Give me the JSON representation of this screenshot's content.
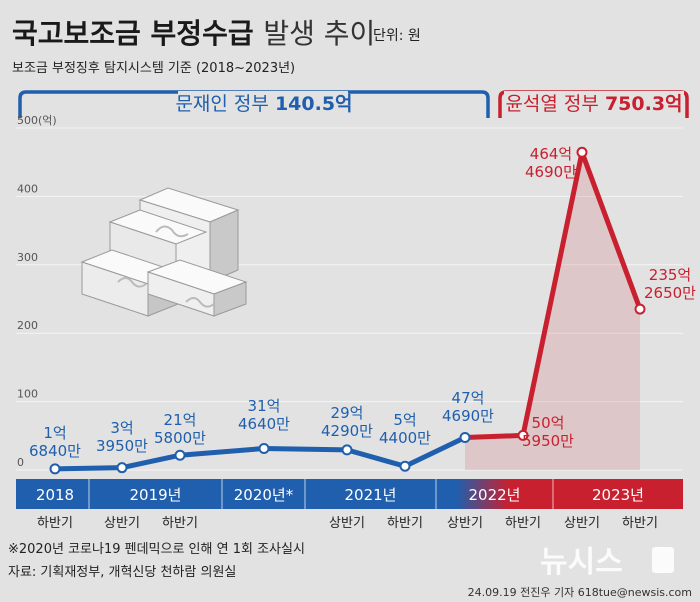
{
  "header": {
    "title_bold": "국고보조금 부정수급",
    "title_light": "발생 추이",
    "unit": "단위: 원",
    "subtitle": "보조금 부정징후 탐지시스템 기준 (2018~2023년)"
  },
  "governments": [
    {
      "name": "문재인 정부",
      "total": "140.5억",
      "color": "#1f5fad"
    },
    {
      "name": "윤석열 정부",
      "total": "750.3억",
      "color": "#c8202f"
    }
  ],
  "chart_data": {
    "type": "line",
    "y_unit_label": "(억)",
    "ylim": [
      0,
      500
    ],
    "yticks": [
      0,
      100,
      200,
      300,
      400,
      500
    ],
    "grid": true,
    "periods": [
      "하반기",
      "상반기",
      "하반기",
      "",
      "상반기",
      "하반기",
      "상반기",
      "하반기",
      "상반기",
      "하반기"
    ],
    "years": [
      {
        "label": "2018",
        "start": 0,
        "end": 0
      },
      {
        "label": "2019년",
        "start": 1,
        "end": 2
      },
      {
        "label": "2020년*",
        "start": 3,
        "end": 3
      },
      {
        "label": "2021년",
        "start": 4,
        "end": 5
      },
      {
        "label": "2022년",
        "start": 6,
        "end": 7
      },
      {
        "label": "2023년",
        "start": 8,
        "end": 9
      }
    ],
    "values": [
      1.684,
      3.395,
      21.58,
      31.464,
      29.429,
      5.44,
      47.469,
      50.595,
      464.469,
      235.265
    ],
    "labels": [
      [
        "1억",
        "6840만"
      ],
      [
        "3억",
        "3950만"
      ],
      [
        "21억",
        "5800만"
      ],
      [
        "31억",
        "4640만"
      ],
      [
        "29억",
        "4290만"
      ],
      [
        "5억",
        "4400만"
      ],
      [
        "47억",
        "4690만"
      ],
      [
        "50억",
        "5950만"
      ],
      [
        "464억",
        "4690만"
      ],
      [
        "235억",
        "2650만"
      ]
    ],
    "series_colors": {
      "moon": "#1f5fad",
      "yoon": "#c8202f"
    }
  },
  "footer": {
    "note": "※2020년 코로나19 펜데믹으로 인해 연 1회 조사실시",
    "source": "자료: 기획재정부, 개혁신당 천하람 의원실",
    "credit": "24.09.19 전진우 기자 618tue@newsis.com",
    "watermark": "뉴시스"
  }
}
